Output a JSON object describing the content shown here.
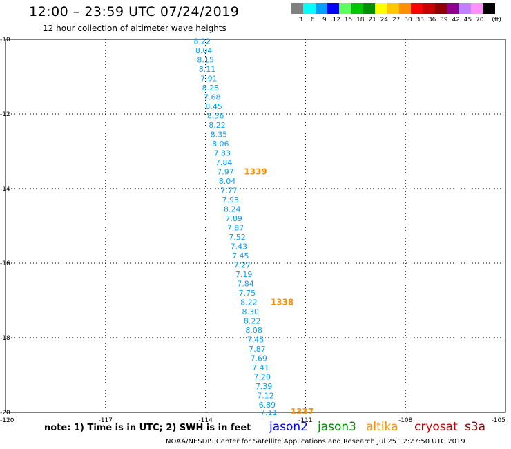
{
  "header": {
    "title": "12:00 – 23:59 UTC 07/24/2019",
    "subtitle": "12 hour collection of altimeter wave heights"
  },
  "legend": {
    "unit_label": "(ft)",
    "items": [
      {
        "color": "#808080",
        "label": "3"
      },
      {
        "color": "#00ffff",
        "label": "6"
      },
      {
        "color": "#00a0ff",
        "label": "9"
      },
      {
        "color": "#0000ff",
        "label": "12"
      },
      {
        "color": "#60ff60",
        "label": "15"
      },
      {
        "color": "#00c800",
        "label": "18"
      },
      {
        "color": "#009000",
        "label": "21"
      },
      {
        "color": "#ffff00",
        "label": "24"
      },
      {
        "color": "#ffc800",
        "label": "27"
      },
      {
        "color": "#ff9000",
        "label": "30"
      },
      {
        "color": "#ff0000",
        "label": "33"
      },
      {
        "color": "#c80000",
        "label": "36"
      },
      {
        "color": "#900000",
        "label": "39"
      },
      {
        "color": "#900090",
        "label": "42"
      },
      {
        "color": "#c080ff",
        "label": "45"
      },
      {
        "color": "#ff90ff",
        "label": "70"
      },
      {
        "color": "#000000",
        "label": ""
      }
    ]
  },
  "note": "note: 1) Time is in UTC; 2) SWH is in feet",
  "satellites": [
    {
      "name": "jason2",
      "color": "#0000ff"
    },
    {
      "name": "jason3",
      "color": "#009000"
    },
    {
      "name": "altika",
      "color": "#ff9000"
    },
    {
      "name": "cryosat",
      "color": "#c80000"
    },
    {
      "name": "s3a",
      "color": "#900000"
    }
  ],
  "footer": "NOAA/NESDIS Center for Satellite Applications and Research    Jul 25 12:27:50 UTC 2019",
  "chart_data": {
    "type": "scatter",
    "xlim": [
      -120,
      -105
    ],
    "ylim": [
      -20,
      -10
    ],
    "x_ticks": [
      -120,
      -117,
      -114,
      -111,
      -108,
      -105
    ],
    "y_ticks": [
      -10,
      -12,
      -14,
      -16,
      -18,
      -20
    ],
    "x_tick_labels": [
      "-120",
      "-117",
      "-114",
      "-111",
      "-108",
      "-105"
    ],
    "y_tick_labels": [
      "-10",
      "-12",
      "-14",
      "-16",
      "-18",
      "-20"
    ],
    "grid": true,
    "wave_color": "#00a0ff",
    "time_color": "#ff9000",
    "wave_heights": [
      {
        "lon": -114.1,
        "lat": -10.05,
        "swh": "8.22"
      },
      {
        "lon": -114.05,
        "lat": -10.3,
        "swh": "8.04"
      },
      {
        "lon": -114.0,
        "lat": -10.55,
        "swh": "8.15"
      },
      {
        "lon": -113.95,
        "lat": -10.8,
        "swh": "8.11"
      },
      {
        "lon": -113.9,
        "lat": -11.05,
        "swh": "7.91"
      },
      {
        "lon": -113.85,
        "lat": -11.3,
        "swh": "8.28"
      },
      {
        "lon": -113.8,
        "lat": -11.55,
        "swh": "7.68"
      },
      {
        "lon": -113.75,
        "lat": -11.8,
        "swh": "8.45"
      },
      {
        "lon": -113.7,
        "lat": -12.05,
        "swh": "8.36"
      },
      {
        "lon": -113.65,
        "lat": -12.3,
        "swh": "8.22"
      },
      {
        "lon": -113.6,
        "lat": -12.55,
        "swh": "8.35"
      },
      {
        "lon": -113.55,
        "lat": -12.8,
        "swh": "8.06"
      },
      {
        "lon": -113.5,
        "lat": -13.05,
        "swh": "7.83"
      },
      {
        "lon": -113.45,
        "lat": -13.3,
        "swh": "7.84"
      },
      {
        "lon": -113.4,
        "lat": -13.55,
        "swh": "7.97"
      },
      {
        "lon": -113.35,
        "lat": -13.8,
        "swh": "8.04"
      },
      {
        "lon": -113.3,
        "lat": -14.05,
        "swh": "7.77"
      },
      {
        "lon": -113.25,
        "lat": -14.3,
        "swh": "7.93"
      },
      {
        "lon": -113.2,
        "lat": -14.55,
        "swh": "8.24"
      },
      {
        "lon": -113.15,
        "lat": -14.8,
        "swh": "7.89"
      },
      {
        "lon": -113.1,
        "lat": -15.05,
        "swh": "7.87"
      },
      {
        "lon": -113.05,
        "lat": -15.3,
        "swh": "7.52"
      },
      {
        "lon": -113.0,
        "lat": -15.55,
        "swh": "7.43"
      },
      {
        "lon": -112.95,
        "lat": -15.8,
        "swh": "7.45"
      },
      {
        "lon": -112.9,
        "lat": -16.05,
        "swh": "7.27"
      },
      {
        "lon": -112.85,
        "lat": -16.3,
        "swh": "7.19"
      },
      {
        "lon": -112.8,
        "lat": -16.55,
        "swh": "7.84"
      },
      {
        "lon": -112.75,
        "lat": -16.8,
        "swh": "7.75"
      },
      {
        "lon": -112.7,
        "lat": -17.05,
        "swh": "8.22"
      },
      {
        "lon": -112.65,
        "lat": -17.3,
        "swh": "8.30"
      },
      {
        "lon": -112.6,
        "lat": -17.55,
        "swh": "8.22"
      },
      {
        "lon": -112.55,
        "lat": -17.8,
        "swh": "8.08"
      },
      {
        "lon": -112.5,
        "lat": -18.05,
        "swh": "7.45"
      },
      {
        "lon": -112.45,
        "lat": -18.3,
        "swh": "7.87"
      },
      {
        "lon": -112.4,
        "lat": -18.55,
        "swh": "7.69"
      },
      {
        "lon": -112.35,
        "lat": -18.8,
        "swh": "7.41"
      },
      {
        "lon": -112.3,
        "lat": -19.05,
        "swh": "7.20"
      },
      {
        "lon": -112.25,
        "lat": -19.3,
        "swh": "7.39"
      },
      {
        "lon": -112.2,
        "lat": -19.55,
        "swh": "7.12"
      },
      {
        "lon": -112.15,
        "lat": -19.8,
        "swh": "6.89"
      },
      {
        "lon": -112.1,
        "lat": -20.0,
        "swh": "7.11"
      }
    ],
    "time_labels": [
      {
        "lon": -112.5,
        "lat": -13.55,
        "time": "1339"
      },
      {
        "lon": -111.7,
        "lat": -17.05,
        "time": "1338"
      },
      {
        "lon": -111.1,
        "lat": -19.98,
        "time": "1337"
      }
    ]
  }
}
